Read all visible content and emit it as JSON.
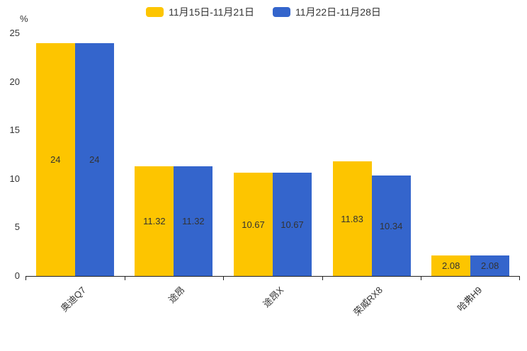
{
  "chart_data": {
    "type": "bar",
    "title": "",
    "categories": [
      "奥迪Q7",
      "途昂",
      "途昂X",
      "荣威RX8",
      "哈弗H9"
    ],
    "series": [
      {
        "name": "11月15日-11月21日",
        "color": "#FDC500",
        "values": [
          24,
          11.32,
          10.67,
          11.83,
          2.08
        ]
      },
      {
        "name": "11月22日-11月28日",
        "color": "#3465CC",
        "values": [
          24,
          11.32,
          10.67,
          10.34,
          2.08
        ]
      }
    ],
    "xlabel": "",
    "ylabel": "%",
    "ylim": [
      0,
      25
    ],
    "yticks": [
      0,
      5,
      10,
      15,
      20,
      25
    ],
    "grid": false,
    "legend_position": "top-center",
    "value_labels": "inside-center",
    "value_label_color": "#333333",
    "axis_color": "#222222",
    "tick_label_color": "#333333",
    "x_tick_label_rotation_deg": 45
  }
}
